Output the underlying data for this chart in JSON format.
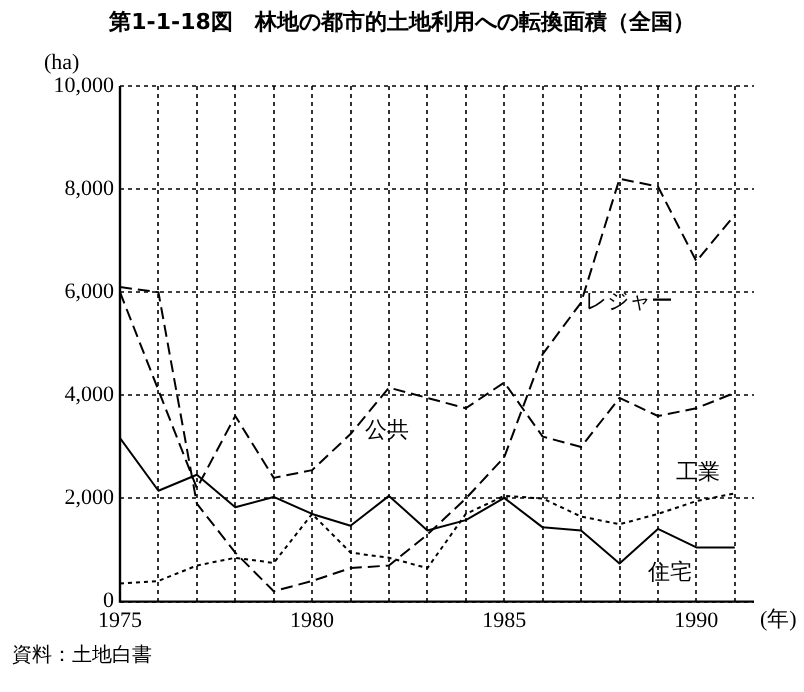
{
  "chart_data": {
    "type": "line",
    "title": "第1-1-18図　林地の都市的土地利用への転換面積（全国）",
    "ylabel": "(ha)",
    "xlabel": "(年)",
    "annotations": [
      "資料：土地白書"
    ],
    "x": [
      1975,
      1976,
      1977,
      1978,
      1979,
      1980,
      1981,
      1982,
      1983,
      1984,
      1985,
      1986,
      1987,
      1988,
      1989,
      1990,
      1991
    ],
    "xlim": [
      1975,
      1991.5
    ],
    "xticks": [
      1975,
      {
        "value": 1976,
        "label": null
      },
      {
        "value": 1977,
        "label": null
      },
      {
        "value": 1978,
        "label": null
      },
      {
        "value": 1979,
        "label": null
      },
      1980,
      {
        "value": 1981,
        "label": null
      },
      {
        "value": 1982,
        "label": null
      },
      {
        "value": 1983,
        "label": null
      },
      {
        "value": 1984,
        "label": null
      },
      1985,
      {
        "value": 1986,
        "label": null
      },
      {
        "value": 1987,
        "label": null
      },
      {
        "value": 1988,
        "label": null
      },
      {
        "value": 1989,
        "label": null
      },
      1990,
      {
        "value": 1991,
        "label": null
      }
    ],
    "ylim": [
      0,
      10000
    ],
    "yticks": [
      {
        "value": 0,
        "label": "0"
      },
      {
        "value": 2000,
        "label": "2,000"
      },
      {
        "value": 4000,
        "label": "4,000"
      },
      {
        "value": 6000,
        "label": "6,000"
      },
      {
        "value": 8000,
        "label": "8,000"
      },
      {
        "value": 10000,
        "label": "10,000"
      }
    ],
    "grid": true,
    "legend": false,
    "marker": "none",
    "series": [
      {
        "name": "住宅",
        "color": "#000000",
        "line_style": "solid",
        "values": [
          3170,
          2150,
          2460,
          1830,
          2030,
          1700,
          1470,
          2050,
          1380,
          1580,
          2010,
          1440,
          1380,
          740,
          1410,
          1050,
          1050
        ]
      },
      {
        "name": "公共",
        "color": "#000000",
        "line_style": "dashed",
        "values": [
          6000,
          4100,
          2200,
          3600,
          2400,
          2550,
          3250,
          4150,
          3950,
          3750,
          4250,
          3200,
          3000,
          3950,
          3600,
          3750,
          4050
        ]
      },
      {
        "name": "レジャー",
        "color": "#000000",
        "line_style": "dashed",
        "values": [
          6100,
          6000,
          1900,
          950,
          200,
          400,
          650,
          700,
          1300,
          2000,
          2800,
          4800,
          5800,
          8200,
          8050,
          6600,
          7500
        ]
      },
      {
        "name": "工業",
        "color": "#000000",
        "line_style": "dotted",
        "values": [
          350,
          400,
          700,
          850,
          750,
          1700,
          950,
          850,
          650,
          1700,
          2050,
          2000,
          1650,
          1500,
          1700,
          1950,
          2100
        ]
      }
    ]
  }
}
